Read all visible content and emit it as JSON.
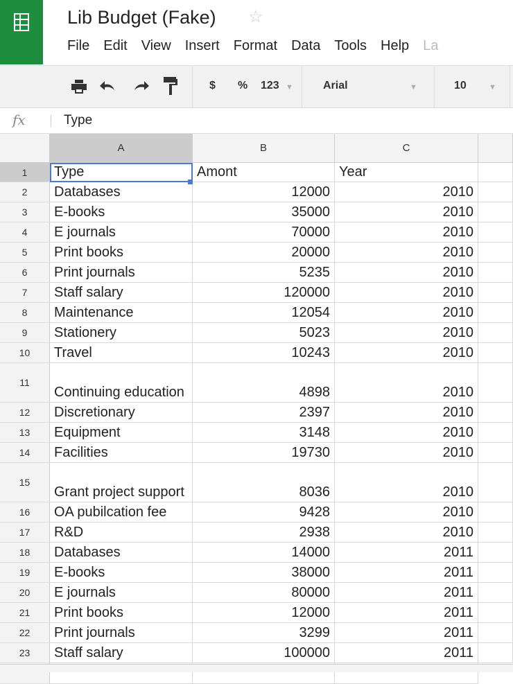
{
  "app": {
    "title": "Lib Budget (Fake)",
    "brand_color": "#1e8e3e"
  },
  "menu": [
    "File",
    "Edit",
    "View",
    "Insert",
    "Format",
    "Data",
    "Tools",
    "Help",
    "La"
  ],
  "toolbar": {
    "currency": "$",
    "percent": "%",
    "number_format": "123",
    "font": "Arial",
    "font_size": "10"
  },
  "formula_bar": {
    "label": "fx",
    "value": "Type"
  },
  "columns": [
    "A",
    "B",
    "C"
  ],
  "rows": [
    {
      "n": "1",
      "a": "Type",
      "b": "Amont",
      "c": "Year",
      "header": true
    },
    {
      "n": "2",
      "a": "Databases",
      "b": "12000",
      "c": "2010"
    },
    {
      "n": "3",
      "a": "E-books",
      "b": "35000",
      "c": "2010"
    },
    {
      "n": "4",
      "a": "E journals",
      "b": "70000",
      "c": "2010"
    },
    {
      "n": "5",
      "a": "Print books",
      "b": "20000",
      "c": "2010"
    },
    {
      "n": "6",
      "a": "Print journals",
      "b": "5235",
      "c": "2010"
    },
    {
      "n": "7",
      "a": "Staff salary",
      "b": "120000",
      "c": "2010"
    },
    {
      "n": "8",
      "a": "Maintenance",
      "b": "12054",
      "c": "2010"
    },
    {
      "n": "9",
      "a": "Stationery",
      "b": "5023",
      "c": "2010"
    },
    {
      "n": "10",
      "a": "Travel",
      "b": "10243",
      "c": "2010"
    },
    {
      "n": "11",
      "a": "Continuing education",
      "b": "4898",
      "c": "2010",
      "tall": true
    },
    {
      "n": "12",
      "a": "Discretionary",
      "b": "2397",
      "c": "2010"
    },
    {
      "n": "13",
      "a": "Equipment",
      "b": "3148",
      "c": "2010"
    },
    {
      "n": "14",
      "a": "Facilities",
      "b": "19730",
      "c": "2010"
    },
    {
      "n": "15",
      "a": "Grant project support",
      "b": "8036",
      "c": "2010",
      "tall": true
    },
    {
      "n": "16",
      "a": "OA pubilcation fee",
      "b": "9428",
      "c": "2010"
    },
    {
      "n": "17",
      "a": "R&D",
      "b": "2938",
      "c": "2010"
    },
    {
      "n": "18",
      "a": "Databases",
      "b": "14000",
      "c": "2011"
    },
    {
      "n": "19",
      "a": "E-books",
      "b": "38000",
      "c": "2011"
    },
    {
      "n": "20",
      "a": "E journals",
      "b": "80000",
      "c": "2011"
    },
    {
      "n": "21",
      "a": "Print books",
      "b": "12000",
      "c": "2011"
    },
    {
      "n": "22",
      "a": "Print journals",
      "b": "3299",
      "c": "2011"
    },
    {
      "n": "23",
      "a": "Staff salary",
      "b": "100000",
      "c": "2011"
    }
  ]
}
